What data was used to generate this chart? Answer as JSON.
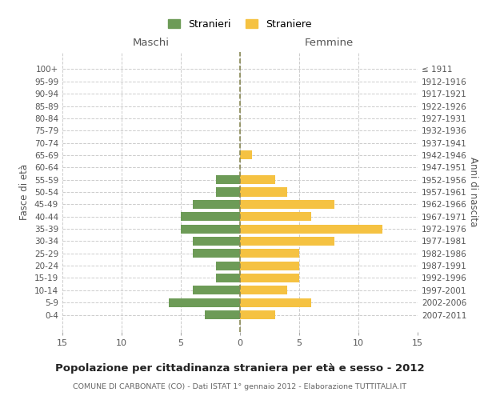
{
  "age_groups": [
    "0-4",
    "5-9",
    "10-14",
    "15-19",
    "20-24",
    "25-29",
    "30-34",
    "35-39",
    "40-44",
    "45-49",
    "50-54",
    "55-59",
    "60-64",
    "65-69",
    "70-74",
    "75-79",
    "80-84",
    "85-89",
    "90-94",
    "95-99",
    "100+"
  ],
  "birth_years": [
    "2007-2011",
    "2002-2006",
    "1997-2001",
    "1992-1996",
    "1987-1991",
    "1982-1986",
    "1977-1981",
    "1972-1976",
    "1967-1971",
    "1962-1966",
    "1957-1961",
    "1952-1956",
    "1947-1951",
    "1942-1946",
    "1937-1941",
    "1932-1936",
    "1927-1931",
    "1922-1926",
    "1917-1921",
    "1912-1916",
    "≤ 1911"
  ],
  "males": [
    3,
    6,
    4,
    2,
    2,
    4,
    4,
    5,
    5,
    4,
    2,
    2,
    0,
    0,
    0,
    0,
    0,
    0,
    0,
    0,
    0
  ],
  "females": [
    3,
    6,
    4,
    5,
    5,
    5,
    8,
    12,
    6,
    8,
    4,
    3,
    0,
    1,
    0,
    0,
    0,
    0,
    0,
    0,
    0
  ],
  "male_color": "#6d9b57",
  "female_color": "#f5c242",
  "title": "Popolazione per cittadinanza straniera per età e sesso - 2012",
  "subtitle": "COMUNE DI CARBONATE (CO) - Dati ISTAT 1° gennaio 2012 - Elaborazione TUTTITALIA.IT",
  "xlabel_left": "Maschi",
  "xlabel_right": "Femmine",
  "ylabel_left": "Fasce di età",
  "ylabel_right": "Anni di nascita",
  "legend_male": "Stranieri",
  "legend_female": "Straniere",
  "xlim": 15,
  "background_color": "#ffffff",
  "grid_color": "#cccccc"
}
